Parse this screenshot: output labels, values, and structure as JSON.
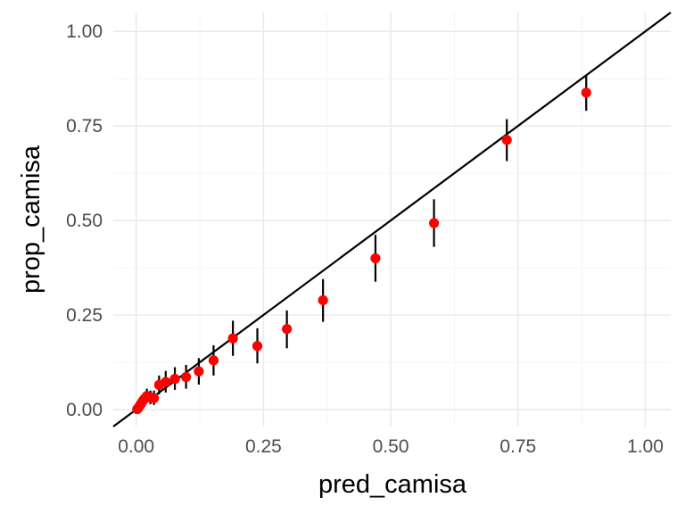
{
  "chart_data": {
    "type": "scatter",
    "title": "",
    "xlabel": "pred_camisa",
    "ylabel": "prop_camisa",
    "xlim": [
      -0.045,
      1.05
    ],
    "ylim": [
      -0.045,
      1.05
    ],
    "x_ticks": [
      "0.00",
      "0.25",
      "0.50",
      "0.75",
      "1.00"
    ],
    "y_ticks": [
      "0.00",
      "0.25",
      "0.50",
      "0.75",
      "1.00"
    ],
    "x_tick_values": [
      0,
      0.25,
      0.5,
      0.75,
      1.0
    ],
    "y_tick_values": [
      0,
      0.25,
      0.5,
      0.75,
      1.0
    ],
    "grid": true,
    "legend": "none",
    "reference_line": {
      "slope": 1,
      "intercept": 0,
      "color": "#000000"
    },
    "point_color": "#ff0000",
    "errorbar_color": "#000000",
    "points": [
      {
        "x": 0.002,
        "y": 0.001,
        "ymin": 0.0,
        "ymax": 0.003
      },
      {
        "x": 0.004,
        "y": 0.004,
        "ymin": 0.001,
        "ymax": 0.008
      },
      {
        "x": 0.006,
        "y": 0.008,
        "ymin": 0.002,
        "ymax": 0.014
      },
      {
        "x": 0.009,
        "y": 0.014,
        "ymin": 0.005,
        "ymax": 0.024
      },
      {
        "x": 0.012,
        "y": 0.021,
        "ymin": 0.008,
        "ymax": 0.034
      },
      {
        "x": 0.016,
        "y": 0.028,
        "ymin": 0.012,
        "ymax": 0.044
      },
      {
        "x": 0.021,
        "y": 0.036,
        "ymin": 0.018,
        "ymax": 0.055
      },
      {
        "x": 0.028,
        "y": 0.032,
        "ymin": 0.014,
        "ymax": 0.05
      },
      {
        "x": 0.035,
        "y": 0.03,
        "ymin": 0.012,
        "ymax": 0.05
      },
      {
        "x": 0.045,
        "y": 0.065,
        "ymin": 0.04,
        "ymax": 0.09
      },
      {
        "x": 0.058,
        "y": 0.073,
        "ymin": 0.045,
        "ymax": 0.102
      },
      {
        "x": 0.076,
        "y": 0.081,
        "ymin": 0.052,
        "ymax": 0.112
      },
      {
        "x": 0.098,
        "y": 0.086,
        "ymin": 0.055,
        "ymax": 0.118
      },
      {
        "x": 0.123,
        "y": 0.101,
        "ymin": 0.066,
        "ymax": 0.136
      },
      {
        "x": 0.152,
        "y": 0.13,
        "ymin": 0.09,
        "ymax": 0.17
      },
      {
        "x": 0.19,
        "y": 0.188,
        "ymin": 0.142,
        "ymax": 0.235
      },
      {
        "x": 0.238,
        "y": 0.168,
        "ymin": 0.122,
        "ymax": 0.215
      },
      {
        "x": 0.296,
        "y": 0.213,
        "ymin": 0.162,
        "ymax": 0.262
      },
      {
        "x": 0.367,
        "y": 0.289,
        "ymin": 0.232,
        "ymax": 0.345
      },
      {
        "x": 0.47,
        "y": 0.4,
        "ymin": 0.338,
        "ymax": 0.462
      },
      {
        "x": 0.585,
        "y": 0.493,
        "ymin": 0.43,
        "ymax": 0.556
      },
      {
        "x": 0.728,
        "y": 0.713,
        "ymin": 0.657,
        "ymax": 0.768
      },
      {
        "x": 0.884,
        "y": 0.838,
        "ymin": 0.79,
        "ymax": 0.884
      }
    ]
  }
}
